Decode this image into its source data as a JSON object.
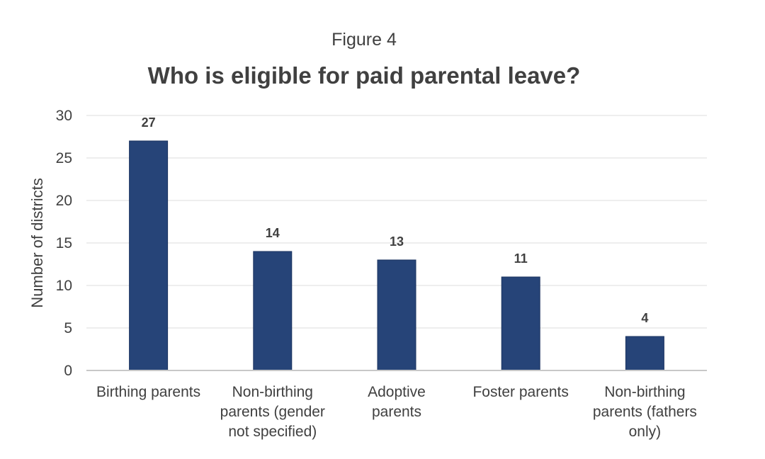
{
  "figure_label": "Figure 4",
  "chart_data": {
    "type": "bar",
    "title": "Who is eligible for paid parental leave?",
    "ylabel": "Number of districts",
    "xlabel": "",
    "ylim": [
      0,
      30
    ],
    "yticks": [
      0,
      5,
      10,
      15,
      20,
      25,
      30
    ],
    "grid": true,
    "legend": "none",
    "bar_color": "#264478",
    "categories": [
      [
        "Birthing parents"
      ],
      [
        "Non-birthing",
        "parents (gender",
        "not specified)"
      ],
      [
        "Adoptive",
        "parents"
      ],
      [
        "Foster parents"
      ],
      [
        "Non-birthing",
        "parents (fathers",
        "only)"
      ]
    ],
    "values": [
      27,
      14,
      13,
      11,
      4
    ],
    "data_labels": [
      "27",
      "14",
      "13",
      "11",
      "4"
    ]
  }
}
